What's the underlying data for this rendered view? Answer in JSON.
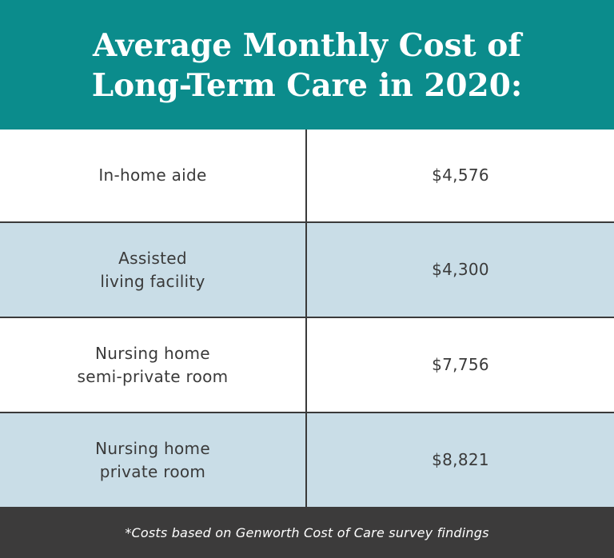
{
  "header": {
    "title_line1": "Average Monthly Cost of",
    "title_line2": "Long-Term Care in 2020:"
  },
  "colors": {
    "header_bg": "#0b8c8c",
    "alt_row_bg": "#c9dde7",
    "footer_bg": "#3c3b3b",
    "text": "#3a3a3a"
  },
  "rows": [
    {
      "label_line1": "In-home aide",
      "label_line2": "",
      "value": "$4,576"
    },
    {
      "label_line1": "Assisted",
      "label_line2": "living facility",
      "value": "$4,300"
    },
    {
      "label_line1": "Nursing home",
      "label_line2": "semi-private room",
      "value": "$7,756"
    },
    {
      "label_line1": "Nursing home",
      "label_line2": "private room",
      "value": "$8,821"
    }
  ],
  "footer": {
    "note": "*Costs based on Genworth Cost of Care survey findings"
  }
}
